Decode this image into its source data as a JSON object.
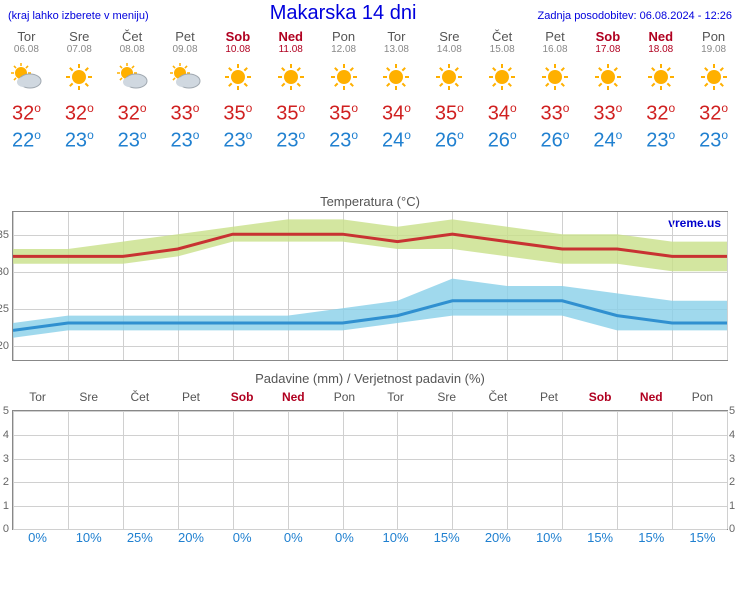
{
  "header": {
    "subtitle": "(kraj lahko izberete v meniju)",
    "title": "Makarska 14 dni",
    "updated": "Zadnja posodobitev: 06.08.2024 - 12:26"
  },
  "days": [
    {
      "name": "Tor",
      "date": "06.08",
      "weekend": false,
      "icon": "partly",
      "high": 32,
      "low": 22
    },
    {
      "name": "Sre",
      "date": "07.08",
      "weekend": false,
      "icon": "sunny",
      "high": 32,
      "low": 23
    },
    {
      "name": "Čet",
      "date": "08.08",
      "weekend": false,
      "icon": "partly",
      "high": 32,
      "low": 23
    },
    {
      "name": "Pet",
      "date": "09.08",
      "weekend": false,
      "icon": "partly",
      "high": 33,
      "low": 23
    },
    {
      "name": "Sob",
      "date": "10.08",
      "weekend": true,
      "icon": "sunny",
      "high": 35,
      "low": 23
    },
    {
      "name": "Ned",
      "date": "11.08",
      "weekend": true,
      "icon": "sunny",
      "high": 35,
      "low": 23
    },
    {
      "name": "Pon",
      "date": "12.08",
      "weekend": false,
      "icon": "sunny",
      "high": 35,
      "low": 23
    },
    {
      "name": "Tor",
      "date": "13.08",
      "weekend": false,
      "icon": "sunny",
      "high": 34,
      "low": 24
    },
    {
      "name": "Sre",
      "date": "14.08",
      "weekend": false,
      "icon": "sunny",
      "high": 35,
      "low": 26
    },
    {
      "name": "Čet",
      "date": "15.08",
      "weekend": false,
      "icon": "sunny",
      "high": 34,
      "low": 26
    },
    {
      "name": "Pet",
      "date": "16.08",
      "weekend": false,
      "icon": "sunny",
      "high": 33,
      "low": 26
    },
    {
      "name": "Sob",
      "date": "17.08",
      "weekend": true,
      "icon": "sunny",
      "high": 33,
      "low": 24
    },
    {
      "name": "Ned",
      "date": "18.08",
      "weekend": true,
      "icon": "sunny",
      "high": 32,
      "low": 23
    },
    {
      "name": "Pon",
      "date": "19.08",
      "weekend": false,
      "icon": "sunny",
      "high": 32,
      "low": 23
    }
  ],
  "temp_chart": {
    "title": "Temperatura (°C)",
    "watermark": "vreme.us",
    "ymin": 18,
    "ymax": 38,
    "yticks": [
      20,
      25,
      30,
      35
    ],
    "high_series": [
      32,
      32,
      32,
      33,
      35,
      35,
      35,
      34,
      35,
      34,
      33,
      33,
      32,
      32
    ],
    "high_band_upper": [
      33,
      33,
      34,
      35,
      36,
      37,
      37,
      36,
      37,
      36,
      35,
      35,
      34,
      34
    ],
    "high_band_lower": [
      31,
      31,
      31,
      32,
      34,
      34,
      34,
      33,
      33,
      32,
      31,
      31,
      30,
      30
    ],
    "low_series": [
      22,
      23,
      23,
      23,
      23,
      23,
      23,
      24,
      26,
      26,
      26,
      24,
      23,
      23
    ],
    "low_band_upper": [
      23,
      24,
      24,
      24,
      24,
      24,
      25,
      26,
      29,
      28,
      28,
      27,
      26,
      26
    ],
    "low_band_lower": [
      21,
      22,
      22,
      22,
      22,
      22,
      22,
      23,
      24,
      24,
      24,
      22,
      22,
      22
    ],
    "colors": {
      "high_line": "#c83232",
      "high_band": "#c8e088",
      "low_line": "#3090d0",
      "low_band": "#88d0e8",
      "grid": "#d0d0d0",
      "border": "#888888",
      "bg": "#ffffff"
    },
    "line_width": 3
  },
  "precip_chart": {
    "title": "Padavine (mm) / Verjetnost padavin (%)",
    "ymin": 0,
    "ymax": 5,
    "yticks": [
      0,
      1,
      2,
      3,
      4,
      5
    ],
    "bars_mm": [
      0,
      0,
      0,
      0,
      0,
      0,
      0,
      0,
      0,
      0,
      0,
      0,
      0,
      0
    ],
    "prob_pct": [
      0,
      10,
      25,
      20,
      0,
      0,
      0,
      10,
      15,
      20,
      10,
      15,
      15,
      15
    ],
    "colors": {
      "grid": "#d0d0d0",
      "border": "#888888",
      "bg": "#ffffff",
      "prob_text": "#2080d0"
    }
  }
}
